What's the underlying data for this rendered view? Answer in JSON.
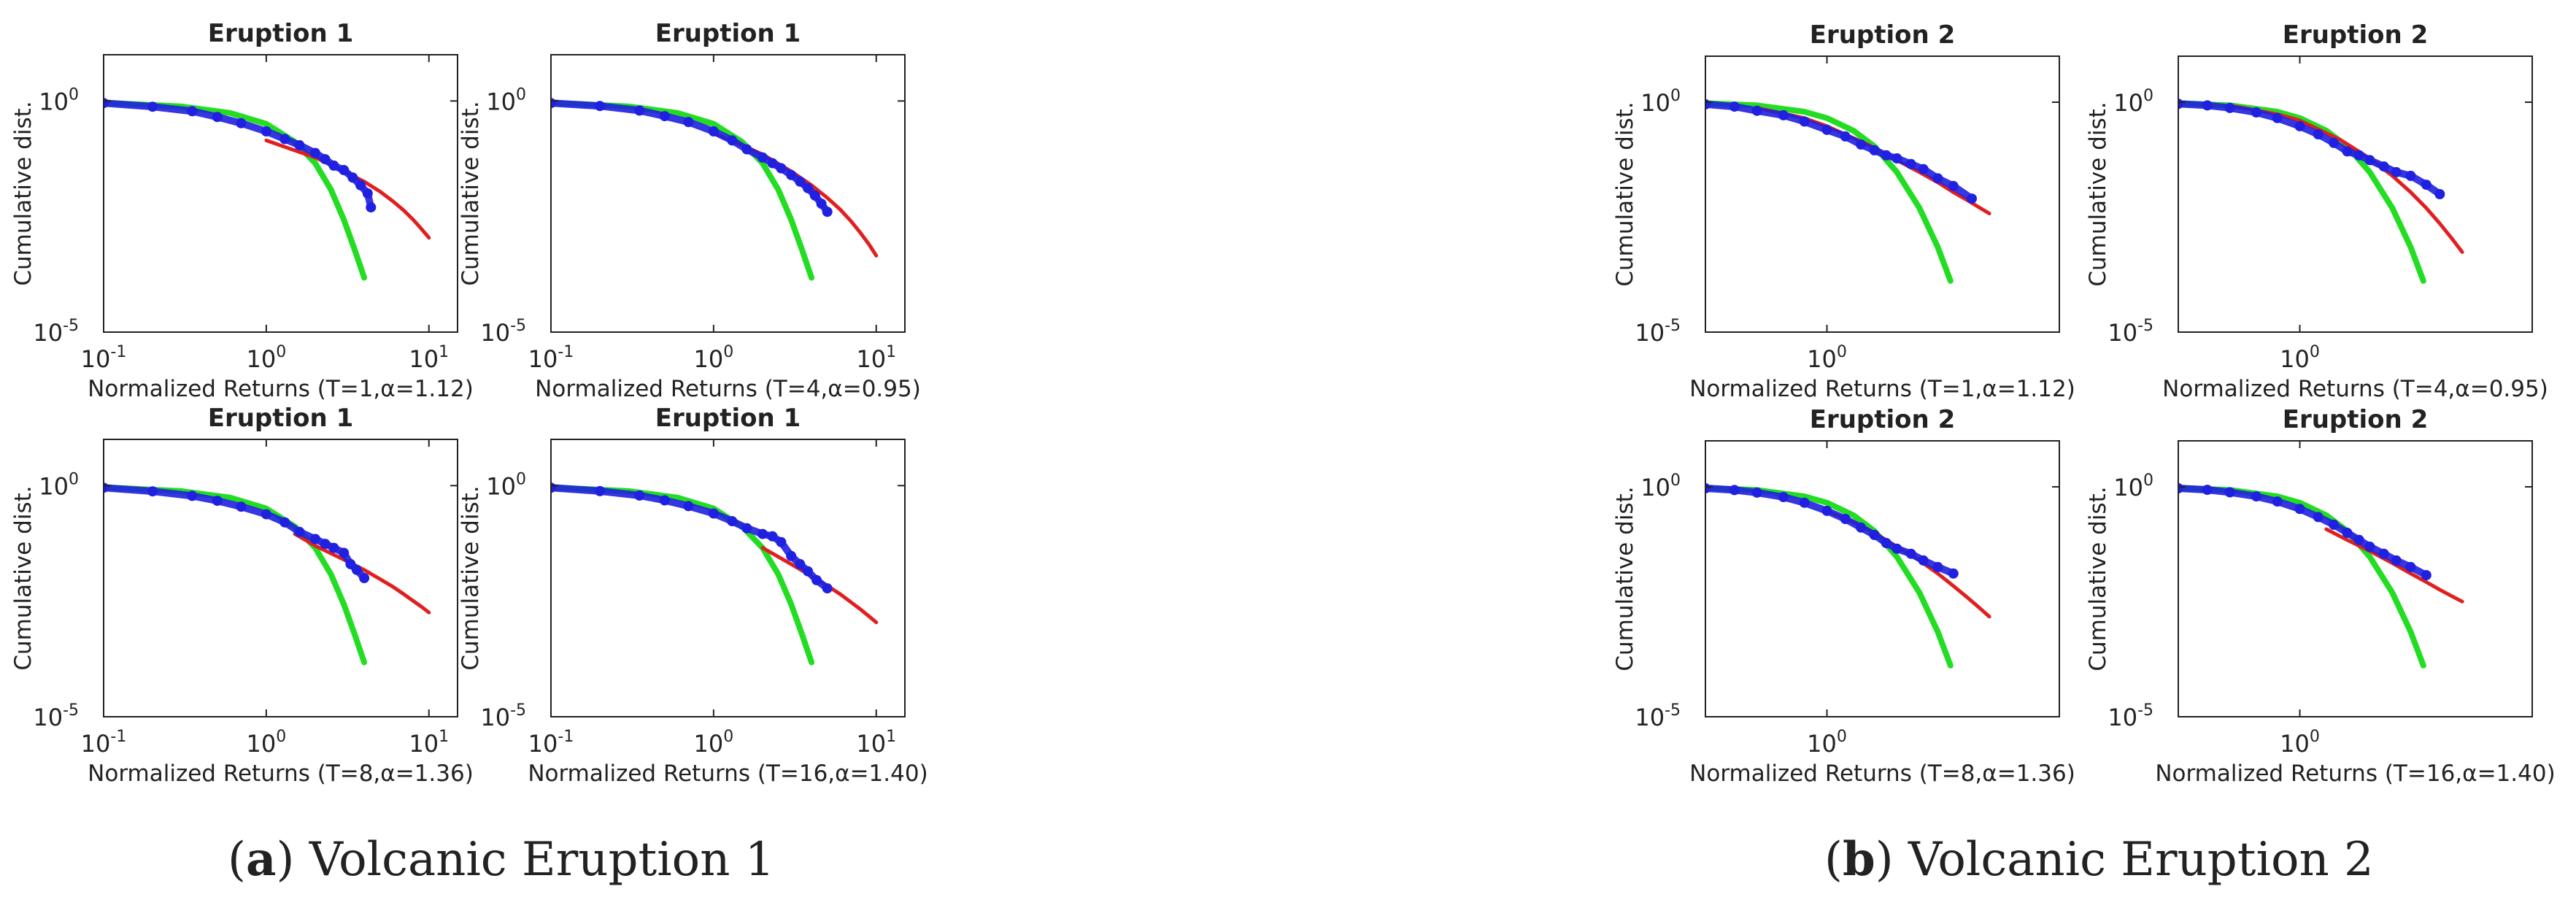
{
  "captions": {
    "a": {
      "letter": "a",
      "text": "Volcanic Eruption 1"
    },
    "b": {
      "letter": "b",
      "text": "Volcanic Eruption 2"
    }
  },
  "colors": {
    "empirical": "#2020e0",
    "levy_fit": "#e02020",
    "gaussian_fit": "#22dd22",
    "axis": "#222222"
  },
  "chart_data": [
    {
      "type": "scatter",
      "title": "Eruption 1",
      "ylabel": "Cumulative dist.",
      "xlabel": "Normalized Returns (T=1,α=1.12)",
      "xscale": "log",
      "yscale": "log",
      "xlim": [
        0.1,
        15
      ],
      "ylim": [
        1e-05,
        10
      ],
      "xticks": [
        {
          "v": 0.1,
          "base": "10",
          "exp": "-1"
        },
        {
          "v": 1,
          "base": "10",
          "exp": "0"
        },
        {
          "v": 10,
          "base": "10",
          "exp": "1"
        }
      ],
      "yticks": [
        {
          "v": 1e-05,
          "base": "10",
          "exp": "-5"
        },
        {
          "v": 1,
          "base": "10",
          "exp": "0"
        }
      ],
      "series": [
        {
          "kind": "gaussian",
          "x": [
            0.1,
            0.3,
            0.6,
            1,
            1.5,
            2,
            2.5,
            3,
            3.5,
            4
          ],
          "y": [
            0.92,
            0.76,
            0.55,
            0.32,
            0.13,
            0.045,
            0.012,
            0.0027,
            0.0006,
            0.00015
          ]
        },
        {
          "kind": "levy",
          "x": [
            1,
            1.5,
            2,
            3,
            4,
            5,
            6,
            7,
            8,
            9,
            10
          ],
          "y": [
            0.14,
            0.085,
            0.06,
            0.03,
            0.018,
            0.011,
            0.0068,
            0.0043,
            0.0027,
            0.0017,
            0.0011
          ]
        },
        {
          "kind": "empirical",
          "x": [
            0.1,
            0.2,
            0.35,
            0.5,
            0.7,
            1,
            1.3,
            1.6,
            2,
            2.3,
            2.6,
            3,
            3.4,
            3.8,
            4.2,
            4.4
          ],
          "y": [
            0.9,
            0.75,
            0.6,
            0.45,
            0.33,
            0.22,
            0.15,
            0.11,
            0.075,
            0.055,
            0.04,
            0.032,
            0.022,
            0.015,
            0.01,
            0.005
          ]
        }
      ]
    },
    {
      "type": "scatter",
      "title": "Eruption 1",
      "ylabel": "Cumulative dist.",
      "xlabel": "Normalized Returns (T=4,α=0.95)",
      "xscale": "log",
      "yscale": "log",
      "xlim": [
        0.1,
        15
      ],
      "ylim": [
        1e-05,
        10
      ],
      "xticks": [
        {
          "v": 0.1,
          "base": "10",
          "exp": "-1"
        },
        {
          "v": 1,
          "base": "10",
          "exp": "0"
        },
        {
          "v": 10,
          "base": "10",
          "exp": "1"
        }
      ],
      "yticks": [
        {
          "v": 1e-05,
          "base": "10",
          "exp": "-5"
        },
        {
          "v": 1,
          "base": "10",
          "exp": "0"
        }
      ],
      "series": [
        {
          "kind": "gaussian",
          "x": [
            0.1,
            0.3,
            0.6,
            1,
            1.5,
            2,
            2.5,
            3,
            3.5,
            4
          ],
          "y": [
            0.92,
            0.76,
            0.55,
            0.32,
            0.13,
            0.045,
            0.012,
            0.0027,
            0.0006,
            0.00015
          ]
        },
        {
          "kind": "levy",
          "x": [
            1,
            1.5,
            2,
            3,
            4,
            5,
            6,
            7,
            8,
            9,
            10
          ],
          "y": [
            0.2,
            0.11,
            0.07,
            0.03,
            0.015,
            0.008,
            0.0045,
            0.0025,
            0.0014,
            0.0008,
            0.00045
          ]
        },
        {
          "kind": "empirical",
          "x": [
            0.1,
            0.2,
            0.35,
            0.5,
            0.7,
            1,
            1.3,
            1.6,
            2,
            2.3,
            2.6,
            3,
            3.4,
            3.8,
            4.2,
            4.6,
            5
          ],
          "y": [
            0.9,
            0.78,
            0.62,
            0.47,
            0.35,
            0.22,
            0.14,
            0.09,
            0.06,
            0.045,
            0.035,
            0.025,
            0.018,
            0.013,
            0.009,
            0.006,
            0.004
          ]
        }
      ]
    },
    {
      "type": "scatter",
      "title": "Eruption 1",
      "ylabel": "Cumulative dist.",
      "xlabel": "Normalized Returns (T=8,α=1.36)",
      "xscale": "log",
      "yscale": "log",
      "xlim": [
        0.1,
        15
      ],
      "ylim": [
        1e-05,
        10
      ],
      "xticks": [
        {
          "v": 0.1,
          "base": "10",
          "exp": "-1"
        },
        {
          "v": 1,
          "base": "10",
          "exp": "0"
        },
        {
          "v": 10,
          "base": "10",
          "exp": "1"
        }
      ],
      "yticks": [
        {
          "v": 1e-05,
          "base": "10",
          "exp": "-5"
        },
        {
          "v": 1,
          "base": "10",
          "exp": "0"
        }
      ],
      "series": [
        {
          "kind": "gaussian",
          "x": [
            0.1,
            0.3,
            0.6,
            1,
            1.5,
            2,
            2.5,
            3,
            3.5,
            4
          ],
          "y": [
            0.92,
            0.76,
            0.55,
            0.32,
            0.13,
            0.045,
            0.012,
            0.0027,
            0.0006,
            0.00015
          ]
        },
        {
          "kind": "levy",
          "x": [
            1.5,
            2,
            3,
            4,
            5,
            6,
            7,
            8,
            9,
            10
          ],
          "y": [
            0.09,
            0.05,
            0.025,
            0.015,
            0.0095,
            0.0065,
            0.0045,
            0.0032,
            0.0024,
            0.0018
          ]
        },
        {
          "kind": "empirical",
          "x": [
            0.1,
            0.2,
            0.35,
            0.5,
            0.7,
            1,
            1.3,
            1.6,
            2,
            2.3,
            2.6,
            3,
            3.3,
            3.6,
            4
          ],
          "y": [
            0.9,
            0.75,
            0.6,
            0.47,
            0.35,
            0.24,
            0.16,
            0.1,
            0.07,
            0.055,
            0.045,
            0.035,
            0.02,
            0.015,
            0.01
          ]
        }
      ]
    },
    {
      "type": "scatter",
      "title": "Eruption 1",
      "ylabel": "Cumulative dist.",
      "xlabel": "Normalized Returns (T=16,α=1.40)",
      "xscale": "log",
      "yscale": "log",
      "xlim": [
        0.1,
        15
      ],
      "ylim": [
        1e-05,
        10
      ],
      "xticks": [
        {
          "v": 0.1,
          "base": "10",
          "exp": "-1"
        },
        {
          "v": 1,
          "base": "10",
          "exp": "0"
        },
        {
          "v": 10,
          "base": "10",
          "exp": "1"
        }
      ],
      "yticks": [
        {
          "v": 1e-05,
          "base": "10",
          "exp": "-5"
        },
        {
          "v": 1,
          "base": "10",
          "exp": "0"
        }
      ],
      "series": [
        {
          "kind": "gaussian",
          "x": [
            0.1,
            0.3,
            0.6,
            1,
            1.5,
            2,
            2.5,
            3,
            3.5,
            4
          ],
          "y": [
            0.92,
            0.76,
            0.55,
            0.32,
            0.13,
            0.045,
            0.012,
            0.0027,
            0.0006,
            0.00015
          ]
        },
        {
          "kind": "levy",
          "x": [
            2,
            3,
            4,
            5,
            6,
            7,
            8,
            9,
            10
          ],
          "y": [
            0.045,
            0.02,
            0.011,
            0.0068,
            0.0045,
            0.003,
            0.0021,
            0.0015,
            0.0011
          ]
        },
        {
          "kind": "empirical",
          "x": [
            0.1,
            0.2,
            0.35,
            0.5,
            0.7,
            1,
            1.3,
            1.6,
            2,
            2.3,
            2.6,
            3,
            3.4,
            3.8,
            4.3,
            5
          ],
          "y": [
            0.9,
            0.76,
            0.61,
            0.48,
            0.36,
            0.25,
            0.17,
            0.12,
            0.09,
            0.08,
            0.06,
            0.03,
            0.02,
            0.014,
            0.009,
            0.006
          ]
        }
      ]
    },
    {
      "type": "scatter",
      "title": "Eruption 2",
      "ylabel": "Cumulative dist.",
      "xlabel": "Normalized Returns (T=1,α=1.12)",
      "xscale": "log",
      "yscale": "log",
      "xlim": [
        0.3,
        10
      ],
      "ylim": [
        1e-05,
        10
      ],
      "xticks": [
        {
          "v": 1,
          "base": "10",
          "exp": "0"
        }
      ],
      "yticks": [
        {
          "v": 1e-05,
          "base": "10",
          "exp": "-5"
        },
        {
          "v": 1,
          "base": "10",
          "exp": "0"
        }
      ],
      "series": [
        {
          "kind": "gaussian",
          "x": [
            0.3,
            0.5,
            0.8,
            1,
            1.3,
            1.6,
            2,
            2.5,
            3,
            3.4
          ],
          "y": [
            0.95,
            0.85,
            0.62,
            0.45,
            0.24,
            0.11,
            0.03,
            0.005,
            0.0007,
            0.00013
          ]
        },
        {
          "kind": "levy",
          "x": [
            0.5,
            0.8,
            1,
            1.5,
            2,
            2.5,
            3,
            3.5,
            4,
            4.5,
            5
          ],
          "y": [
            0.75,
            0.45,
            0.3,
            0.12,
            0.055,
            0.03,
            0.018,
            0.011,
            0.0075,
            0.0052,
            0.0038
          ]
        },
        {
          "kind": "empirical",
          "x": [
            0.3,
            0.4,
            0.5,
            0.65,
            0.8,
            1,
            1.2,
            1.4,
            1.6,
            1.8,
            2,
            2.3,
            2.6,
            3,
            3.5,
            4.2
          ],
          "y": [
            0.9,
            0.8,
            0.65,
            0.52,
            0.38,
            0.25,
            0.18,
            0.12,
            0.09,
            0.07,
            0.06,
            0.045,
            0.035,
            0.022,
            0.015,
            0.008
          ]
        }
      ]
    },
    {
      "type": "scatter",
      "title": "Eruption 2",
      "ylabel": "Cumulative dist.",
      "xlabel": "Normalized Returns (T=4,α=0.95)",
      "xscale": "log",
      "yscale": "log",
      "xlim": [
        0.3,
        10
      ],
      "ylim": [
        1e-05,
        10
      ],
      "xticks": [
        {
          "v": 1,
          "base": "10",
          "exp": "0"
        }
      ],
      "yticks": [
        {
          "v": 1e-05,
          "base": "10",
          "exp": "-5"
        },
        {
          "v": 1,
          "base": "10",
          "exp": "0"
        }
      ],
      "series": [
        {
          "kind": "gaussian",
          "x": [
            0.3,
            0.5,
            0.8,
            1,
            1.3,
            1.6,
            2,
            2.5,
            3,
            3.4
          ],
          "y": [
            0.95,
            0.85,
            0.62,
            0.45,
            0.24,
            0.11,
            0.03,
            0.005,
            0.0007,
            0.00013
          ]
        },
        {
          "kind": "levy",
          "x": [
            0.5,
            0.8,
            1,
            1.5,
            2,
            2.5,
            3,
            3.5,
            4,
            4.5,
            5
          ],
          "y": [
            0.85,
            0.55,
            0.4,
            0.15,
            0.06,
            0.025,
            0.011,
            0.005,
            0.0023,
            0.0011,
            0.00055
          ]
        },
        {
          "kind": "empirical",
          "x": [
            0.3,
            0.4,
            0.5,
            0.65,
            0.8,
            1,
            1.2,
            1.4,
            1.6,
            1.8,
            2,
            2.3,
            2.6,
            3,
            3.5,
            4
          ],
          "y": [
            0.92,
            0.85,
            0.75,
            0.6,
            0.45,
            0.3,
            0.2,
            0.13,
            0.085,
            0.07,
            0.055,
            0.04,
            0.03,
            0.025,
            0.016,
            0.01
          ]
        }
      ]
    },
    {
      "type": "scatter",
      "title": "Eruption 2",
      "ylabel": "Cumulative dist.",
      "xlabel": "Normalized Returns (T=8,α=1.36)",
      "xscale": "log",
      "yscale": "log",
      "xlim": [
        0.3,
        10
      ],
      "ylim": [
        1e-05,
        10
      ],
      "xticks": [
        {
          "v": 1,
          "base": "10",
          "exp": "0"
        }
      ],
      "yticks": [
        {
          "v": 1e-05,
          "base": "10",
          "exp": "-5"
        },
        {
          "v": 1,
          "base": "10",
          "exp": "0"
        }
      ],
      "series": [
        {
          "kind": "gaussian",
          "x": [
            0.3,
            0.5,
            0.8,
            1,
            1.3,
            1.6,
            2,
            2.5,
            3,
            3.4
          ],
          "y": [
            0.95,
            0.85,
            0.62,
            0.45,
            0.24,
            0.11,
            0.03,
            0.005,
            0.0007,
            0.00013
          ]
        },
        {
          "kind": "levy",
          "x": [
            1,
            1.3,
            1.6,
            2,
            2.5,
            3,
            3.5,
            4,
            4.5,
            5
          ],
          "y": [
            0.3,
            0.17,
            0.1,
            0.05,
            0.025,
            0.013,
            0.007,
            0.004,
            0.0024,
            0.0015
          ]
        },
        {
          "kind": "empirical",
          "x": [
            0.3,
            0.4,
            0.5,
            0.65,
            0.8,
            1,
            1.2,
            1.4,
            1.6,
            1.8,
            2,
            2.3,
            2.6,
            3,
            3.5
          ],
          "y": [
            0.93,
            0.85,
            0.75,
            0.6,
            0.45,
            0.3,
            0.2,
            0.13,
            0.09,
            0.06,
            0.045,
            0.035,
            0.025,
            0.018,
            0.013
          ]
        }
      ]
    },
    {
      "type": "scatter",
      "title": "Eruption 2",
      "ylabel": "Cumulative dist.",
      "xlabel": "Normalized Returns (T=16,α=1.40)",
      "xscale": "log",
      "yscale": "log",
      "xlim": [
        0.3,
        10
      ],
      "ylim": [
        1e-05,
        10
      ],
      "xticks": [
        {
          "v": 1,
          "base": "10",
          "exp": "0"
        }
      ],
      "yticks": [
        {
          "v": 1e-05,
          "base": "10",
          "exp": "-5"
        },
        {
          "v": 1,
          "base": "10",
          "exp": "0"
        }
      ],
      "series": [
        {
          "kind": "gaussian",
          "x": [
            0.3,
            0.5,
            0.8,
            1,
            1.3,
            1.6,
            2,
            2.5,
            3,
            3.4
          ],
          "y": [
            0.95,
            0.85,
            0.62,
            0.45,
            0.24,
            0.11,
            0.03,
            0.005,
            0.0007,
            0.00013
          ]
        },
        {
          "kind": "levy",
          "x": [
            1.3,
            1.6,
            2,
            2.5,
            3,
            3.5,
            4,
            4.5,
            5
          ],
          "y": [
            0.12,
            0.07,
            0.04,
            0.022,
            0.013,
            0.0085,
            0.0058,
            0.0042,
            0.0032
          ]
        },
        {
          "kind": "empirical",
          "x": [
            0.3,
            0.4,
            0.5,
            0.65,
            0.8,
            1,
            1.2,
            1.4,
            1.6,
            1.8,
            2,
            2.3,
            2.6,
            3,
            3.5
          ],
          "y": [
            0.93,
            0.86,
            0.76,
            0.62,
            0.48,
            0.33,
            0.22,
            0.15,
            0.1,
            0.07,
            0.05,
            0.035,
            0.025,
            0.018,
            0.012
          ]
        }
      ]
    }
  ]
}
